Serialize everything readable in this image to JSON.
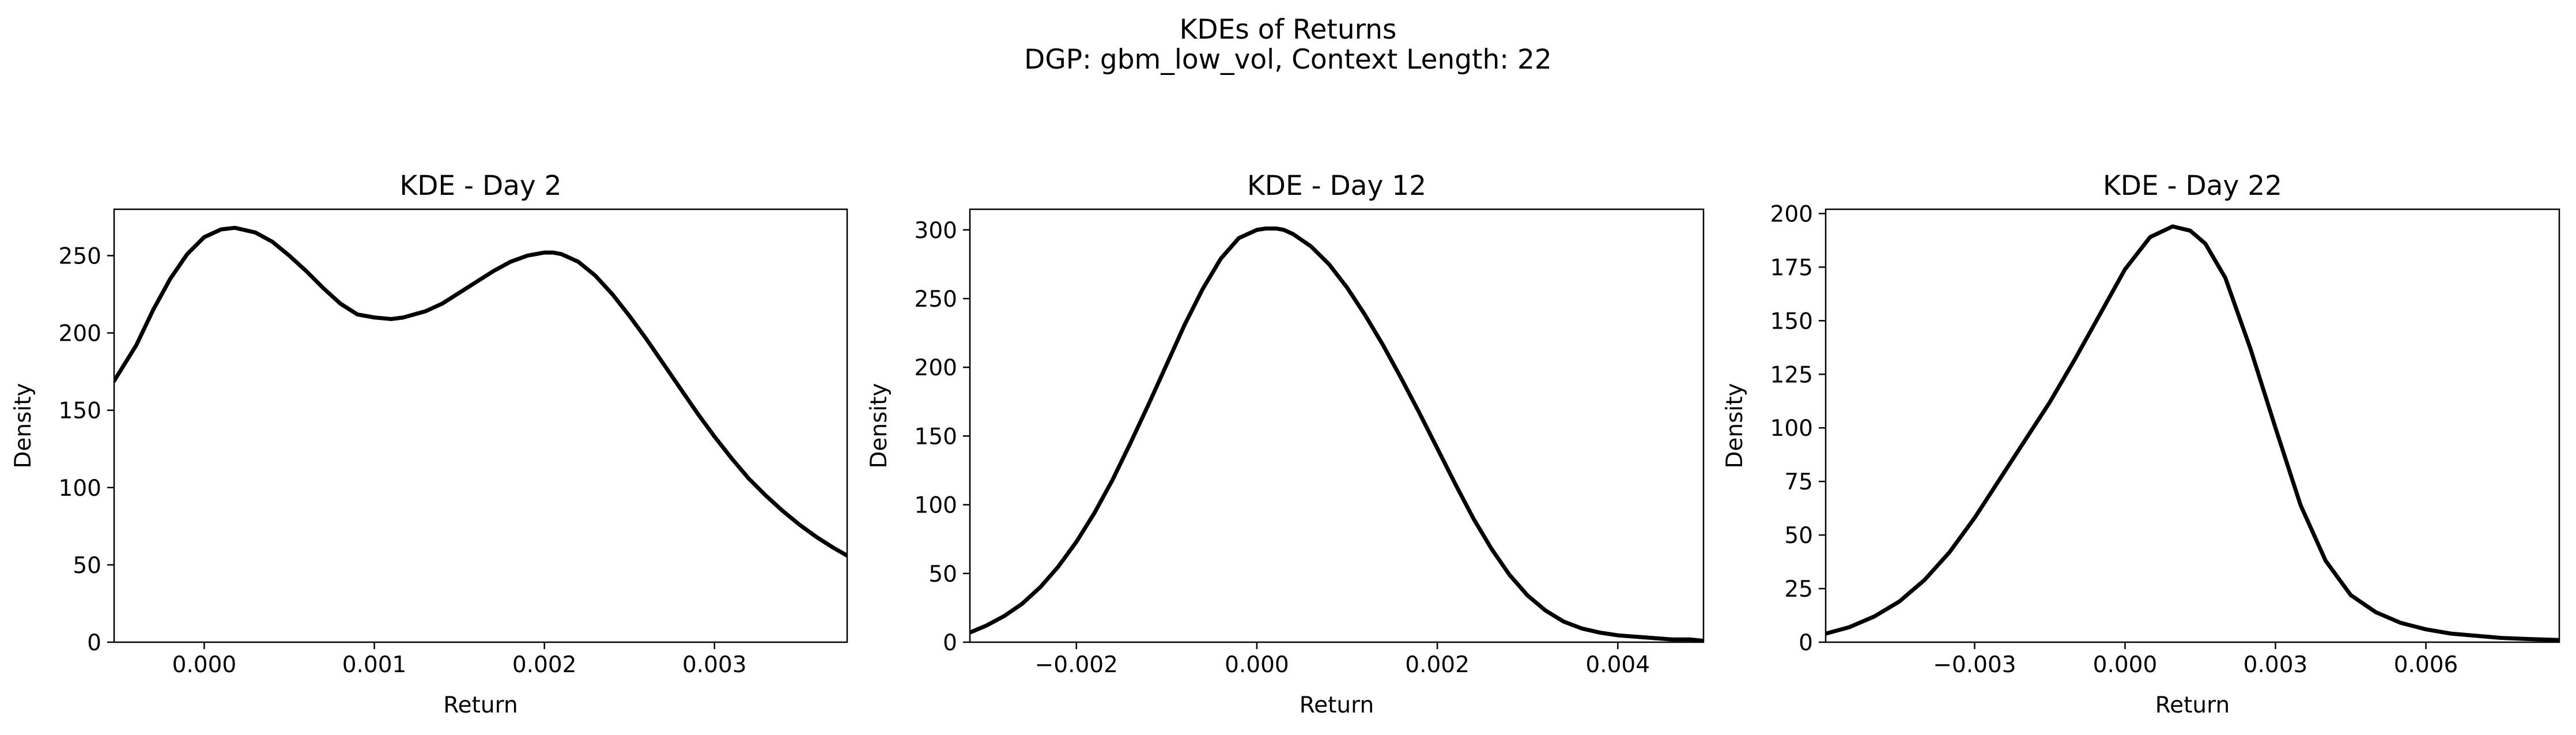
{
  "figure": {
    "title_line1": "KDEs of Returns",
    "title_line2": "DGP: gbm_low_vol, Context Length: 22"
  },
  "chart_data": [
    {
      "type": "line",
      "title": "KDE - Day 2",
      "xlabel": "Return",
      "ylabel": "Density",
      "xlim": [
        -0.00053,
        0.00378
      ],
      "ylim": [
        0,
        280
      ],
      "xticks": [
        0.0,
        0.001,
        0.002,
        0.003
      ],
      "xtick_labels": [
        "0.000",
        "0.001",
        "0.002",
        "0.003"
      ],
      "yticks": [
        0,
        50,
        100,
        150,
        200,
        250
      ],
      "ytick_labels": [
        "0",
        "50",
        "100",
        "150",
        "200",
        "250"
      ],
      "grid": false,
      "series": [
        {
          "color": "#000000",
          "x": [
            -0.00053,
            -0.0004,
            -0.0003,
            -0.0002,
            -0.0001,
            0.0,
            0.0001,
            0.00018,
            0.0003,
            0.0004,
            0.0005,
            0.0006,
            0.0007,
            0.0008,
            0.0009,
            0.001,
            0.0011,
            0.00117,
            0.0013,
            0.0014,
            0.0015,
            0.0016,
            0.0017,
            0.0018,
            0.0019,
            0.002,
            0.00205,
            0.0021,
            0.0022,
            0.0023,
            0.0024,
            0.0025,
            0.0026,
            0.0027,
            0.0028,
            0.0029,
            0.003,
            0.0031,
            0.0032,
            0.0033,
            0.0034,
            0.0035,
            0.0036,
            0.0037,
            0.00378
          ],
          "y": [
            169,
            192,
            215,
            235,
            251,
            262,
            267,
            268,
            265,
            259,
            250,
            240,
            229,
            219,
            212,
            210,
            209,
            210,
            214,
            219,
            226,
            233,
            240,
            246,
            250,
            252,
            252,
            251,
            246,
            237,
            225,
            211,
            196,
            180,
            164,
            148,
            133,
            119,
            106,
            95,
            85,
            76,
            68,
            61,
            56
          ]
        }
      ]
    },
    {
      "type": "line",
      "title": "KDE - Day 12",
      "xlabel": "Return",
      "ylabel": "Density",
      "xlim": [
        -0.00318,
        0.00495
      ],
      "ylim": [
        0,
        315
      ],
      "xticks": [
        -0.002,
        0.0,
        0.002,
        0.004
      ],
      "xtick_labels": [
        "−0.002",
        "0.000",
        "0.002",
        "0.004"
      ],
      "yticks": [
        0,
        50,
        100,
        150,
        200,
        250,
        300
      ],
      "ytick_labels": [
        "0",
        "50",
        "100",
        "150",
        "200",
        "250",
        "300"
      ],
      "grid": false,
      "series": [
        {
          "color": "#000000",
          "x": [
            -0.00318,
            -0.003,
            -0.0028,
            -0.0026,
            -0.0024,
            -0.0022,
            -0.002,
            -0.0018,
            -0.0016,
            -0.0014,
            -0.0012,
            -0.001,
            -0.0008,
            -0.0006,
            -0.0004,
            -0.0002,
            0.0,
            0.0001,
            0.00022,
            0.0003,
            0.0004,
            0.0006,
            0.0008,
            0.001,
            0.0012,
            0.0014,
            0.0016,
            0.0018,
            0.002,
            0.0022,
            0.0024,
            0.0026,
            0.0028,
            0.003,
            0.0032,
            0.0034,
            0.0036,
            0.0038,
            0.004,
            0.0042,
            0.0044,
            0.0046,
            0.0048,
            0.00495
          ],
          "y": [
            7,
            12,
            19,
            28,
            40,
            55,
            73,
            94,
            118,
            145,
            173,
            202,
            231,
            257,
            279,
            294,
            300,
            301,
            301,
            300,
            297,
            288,
            275,
            258,
            238,
            216,
            192,
            167,
            141,
            115,
            90,
            68,
            49,
            34,
            23,
            15,
            10,
            7,
            5,
            4,
            3,
            2,
            2,
            1
          ]
        }
      ]
    },
    {
      "type": "line",
      "title": "KDE - Day 22",
      "xlabel": "Return",
      "ylabel": "Density",
      "xlim": [
        -0.00597,
        0.00866
      ],
      "ylim": [
        0,
        202
      ],
      "xticks": [
        -0.003,
        0.0,
        0.003,
        0.006
      ],
      "xtick_labels": [
        "−0.003",
        "0.000",
        "0.003",
        "0.006"
      ],
      "yticks": [
        0,
        25,
        50,
        75,
        100,
        125,
        150,
        175,
        200
      ],
      "ytick_labels": [
        "0",
        "25",
        "50",
        "75",
        "100",
        "125",
        "150",
        "175",
        "200"
      ],
      "grid": false,
      "series": [
        {
          "color": "#000000",
          "x": [
            -0.00597,
            -0.0055,
            -0.005,
            -0.0045,
            -0.004,
            -0.0035,
            -0.003,
            -0.0025,
            -0.002,
            -0.0015,
            -0.001,
            -0.0005,
            0.0,
            0.0005,
            0.00095,
            0.0013,
            0.0016,
            0.002,
            0.0025,
            0.003,
            0.0035,
            0.004,
            0.0045,
            0.005,
            0.0055,
            0.006,
            0.0065,
            0.007,
            0.0075,
            0.008,
            0.00866
          ],
          "y": [
            4,
            7,
            12,
            19,
            29,
            42,
            58,
            76,
            94,
            112,
            132,
            153,
            174,
            189,
            194,
            192,
            186,
            170,
            137,
            100,
            64,
            38,
            22,
            14,
            9,
            6,
            4,
            3,
            2,
            1.5,
            1
          ]
        }
      ]
    }
  ]
}
